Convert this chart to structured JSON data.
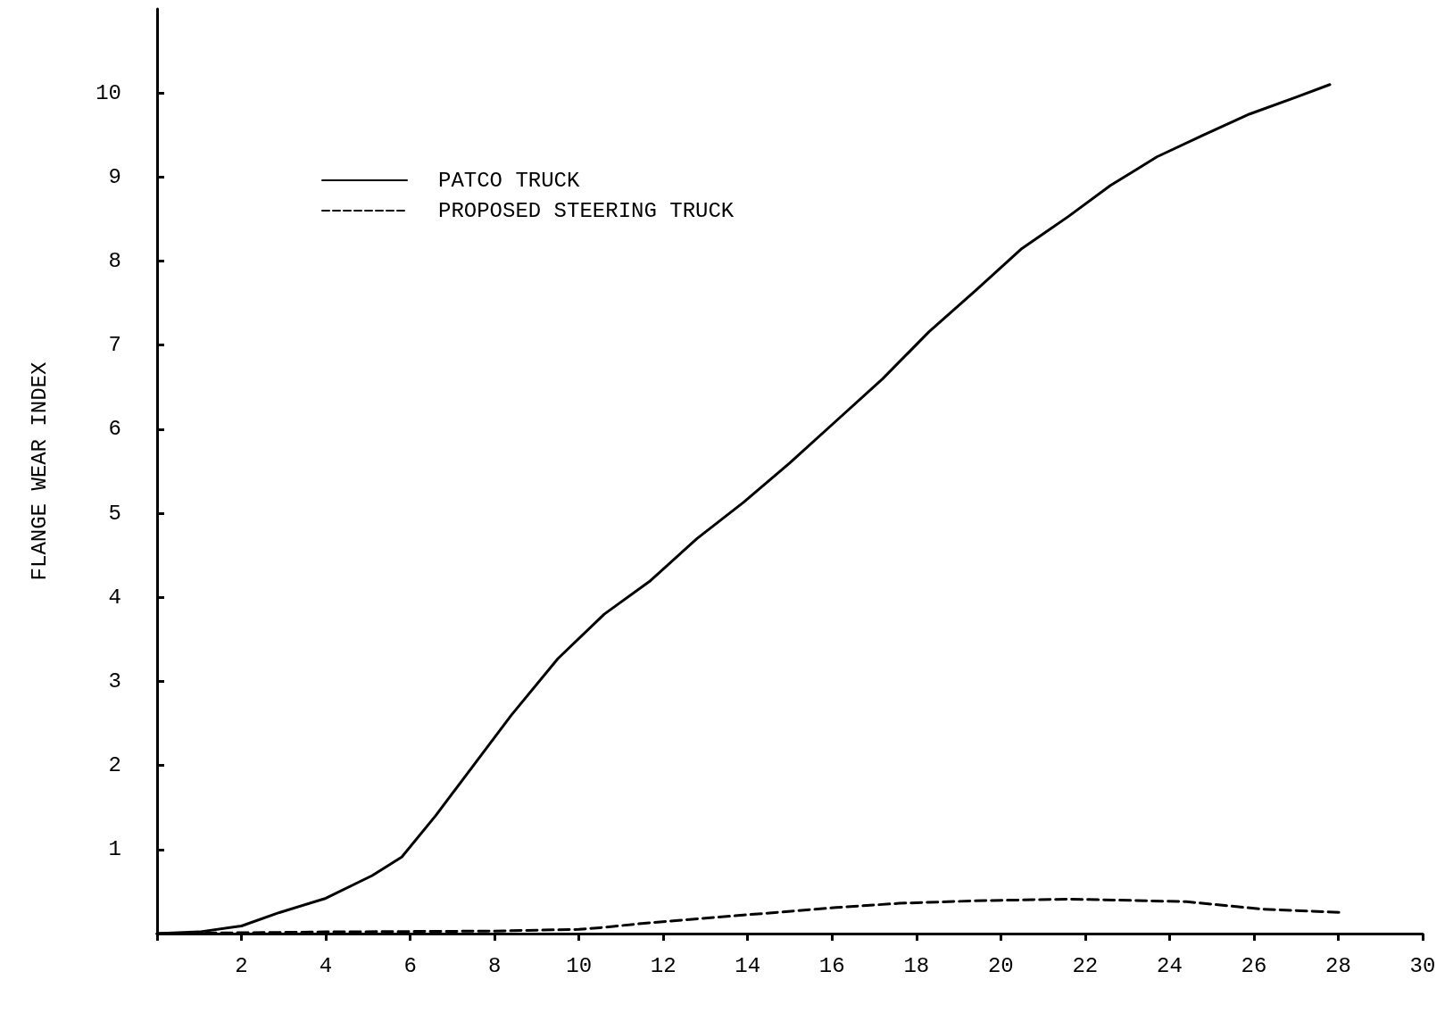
{
  "chart_data": {
    "type": "line",
    "ylabel": "FLANGE WEAR INDEX",
    "xlim": [
      0,
      30
    ],
    "ylim": [
      0,
      11
    ],
    "xticks": [
      {
        "value": 0,
        "label": null
      },
      2,
      4,
      6,
      8,
      10,
      12,
      14,
      16,
      18,
      20,
      22,
      24,
      26,
      28,
      30
    ],
    "yticks": [
      {
        "value": 0,
        "label": null
      },
      1,
      2,
      3,
      4,
      5,
      6,
      7,
      8,
      9,
      10
    ],
    "grid": false,
    "legend": "top left",
    "marker": "none",
    "series": [
      {
        "name": "PATCO TRUCK",
        "color": "#000000",
        "line_style": "solid",
        "x": [
          0,
          1,
          2,
          2.9,
          4,
          5.1,
          5.8,
          6.6,
          7.5,
          8.4,
          9.5,
          10.6,
          11.7,
          12.8,
          13.9,
          15,
          16.1,
          17.2,
          18.3,
          19.4,
          20.5,
          21.6,
          22.6,
          23.7,
          24.8,
          25.9,
          27,
          27.8
        ],
        "values": [
          0,
          0.02,
          0.09,
          0.25,
          0.42,
          0.69,
          0.91,
          1.4,
          2.0,
          2.6,
          3.27,
          3.8,
          4.2,
          4.7,
          5.13,
          5.6,
          6.1,
          6.6,
          7.16,
          7.65,
          8.15,
          8.53,
          8.9,
          9.24,
          9.5,
          9.75,
          9.95,
          10.1
        ]
      },
      {
        "name": "PROPOSED STEERING TRUCK",
        "color": "#000000",
        "line_style": "dashed",
        "x": [
          0,
          4,
          8,
          10,
          10.5,
          11.7,
          13.9,
          16.1,
          17.6,
          19.4,
          21.6,
          24.4,
          26.2,
          28.1
        ],
        "values": [
          0,
          0.02,
          0.03,
          0.05,
          0.07,
          0.13,
          0.22,
          0.31,
          0.36,
          0.39,
          0.41,
          0.38,
          0.29,
          0.25
        ]
      }
    ]
  }
}
